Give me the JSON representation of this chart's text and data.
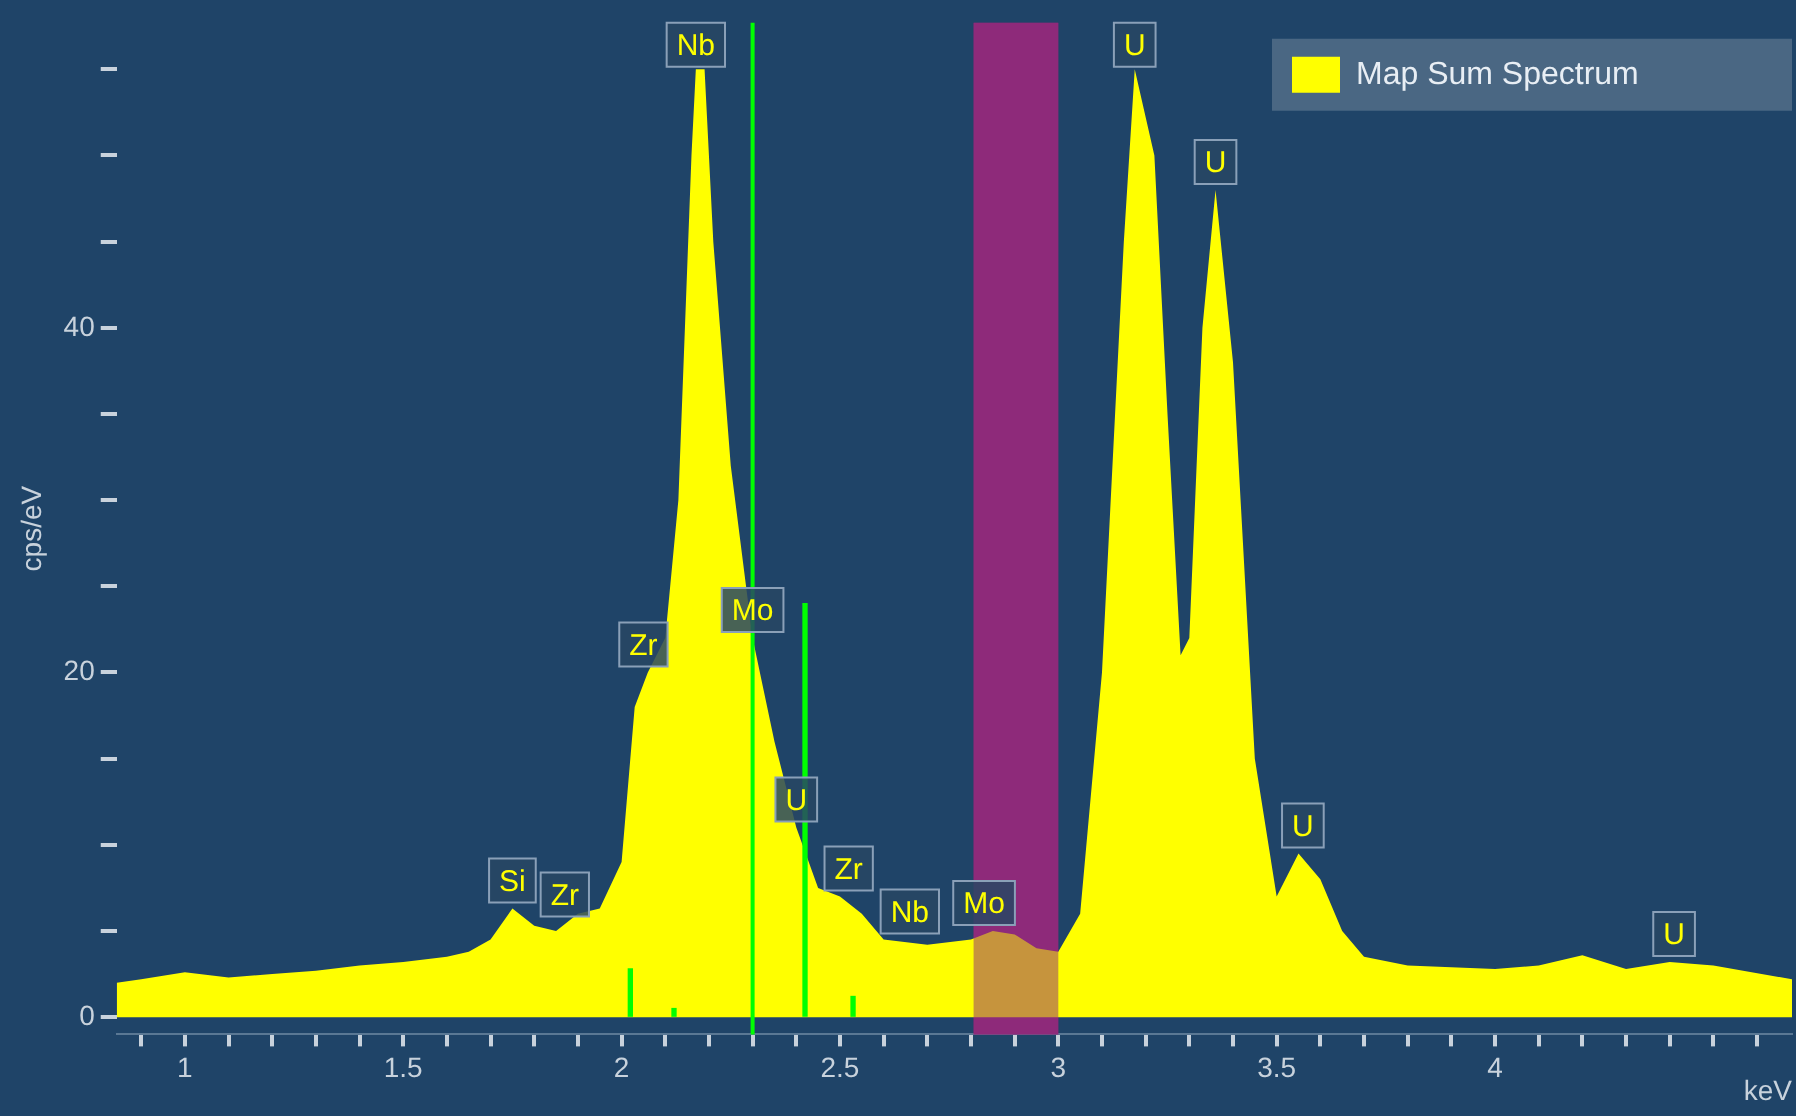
{
  "chart_data": {
    "type": "area",
    "xlabel": "keV",
    "ylabel": "cps/eV",
    "xlim": [
      0.844,
      4.68
    ],
    "ylim": [
      -1,
      57.7
    ],
    "xticks": [
      {
        "value": 0.9,
        "label": null
      },
      1,
      {
        "value": 1.1,
        "label": null
      },
      {
        "value": 1.2,
        "label": null
      },
      {
        "value": 1.3,
        "label": null
      },
      {
        "value": 1.4,
        "label": null
      },
      1.5,
      {
        "value": 1.6,
        "label": null
      },
      {
        "value": 1.7,
        "label": null
      },
      {
        "value": 1.8,
        "label": null
      },
      {
        "value": 1.9,
        "label": null
      },
      2,
      {
        "value": 2.1,
        "label": null
      },
      {
        "value": 2.2,
        "label": null
      },
      {
        "value": 2.3,
        "label": null
      },
      {
        "value": 2.4,
        "label": null
      },
      2.5,
      {
        "value": 2.6,
        "label": null
      },
      {
        "value": 2.7,
        "label": null
      },
      {
        "value": 2.8,
        "label": null
      },
      {
        "value": 2.9,
        "label": null
      },
      3,
      {
        "value": 3.1,
        "label": null
      },
      {
        "value": 3.2,
        "label": null
      },
      {
        "value": 3.3,
        "label": null
      },
      {
        "value": 3.4,
        "label": null
      },
      3.5,
      {
        "value": 3.6,
        "label": null
      },
      {
        "value": 3.7,
        "label": null
      },
      {
        "value": 3.8,
        "label": null
      },
      {
        "value": 3.9,
        "label": null
      },
      4,
      {
        "value": 4.1,
        "label": null
      },
      {
        "value": 4.2,
        "label": null
      },
      {
        "value": 4.3,
        "label": null
      },
      {
        "value": 4.4,
        "label": null
      },
      {
        "value": 4.5,
        "label": null
      },
      {
        "value": 4.6,
        "label": null
      }
    ],
    "yticks": [
      0,
      {
        "value": 5,
        "label": null
      },
      {
        "value": 10,
        "label": null
      },
      {
        "value": 15,
        "label": null
      },
      20,
      {
        "value": 25,
        "label": null
      },
      {
        "value": 30,
        "label": null
      },
      {
        "value": 35,
        "label": null
      },
      40,
      {
        "value": 45,
        "label": null
      },
      {
        "value": 50,
        "label": null
      },
      {
        "value": 55,
        "label": null
      }
    ],
    "grid": false,
    "legend": "top right",
    "series": [
      {
        "name": "Map Sum Spectrum",
        "color": "#ffff00",
        "x": [
          0.844,
          0.9,
          1.0,
          1.1,
          1.2,
          1.3,
          1.4,
          1.5,
          1.6,
          1.65,
          1.7,
          1.75,
          1.8,
          1.85,
          1.9,
          1.95,
          2.0,
          2.03,
          2.06,
          2.1,
          2.13,
          2.16,
          2.17,
          2.19,
          2.21,
          2.25,
          2.3,
          2.35,
          2.4,
          2.45,
          2.5,
          2.55,
          2.6,
          2.7,
          2.8,
          2.85,
          2.9,
          2.95,
          3.0,
          3.05,
          3.1,
          3.15,
          3.175,
          3.22,
          3.25,
          3.28,
          3.3,
          3.33,
          3.36,
          3.4,
          3.45,
          3.5,
          3.55,
          3.6,
          3.65,
          3.7,
          3.8,
          4.0,
          4.1,
          4.2,
          4.3,
          4.4,
          4.5,
          4.68
        ],
        "values": [
          2,
          2.2,
          2.6,
          2.3,
          2.5,
          2.7,
          3,
          3.2,
          3.5,
          3.8,
          4.5,
          6.3,
          5.3,
          5,
          6,
          6.3,
          9,
          18,
          20,
          22,
          30,
          50,
          55,
          55,
          45,
          32,
          22,
          16,
          11,
          7.5,
          7,
          6,
          4.5,
          4.2,
          4.5,
          5,
          4.8,
          4,
          3.8,
          6,
          20,
          45,
          55,
          50,
          35,
          21,
          22,
          40,
          48,
          38,
          15,
          7,
          9.5,
          8,
          5,
          3.5,
          3,
          2.8,
          3,
          3.6,
          2.8,
          3.2,
          3,
          2.2
        ]
      },
      {
        "color": "#00ff00",
        "type": "bar",
        "x": [
          2.02,
          2.12,
          2.42,
          2.53
        ],
        "values": [
          2.8,
          0.5,
          24,
          1.2
        ]
      }
    ],
    "ref_lines": [
      {
        "axis": "x",
        "value": 2.3,
        "color": "#00ff00"
      }
    ],
    "bands": [
      {
        "axis": "x",
        "from": 2.806,
        "to": 3.0,
        "color": "#8e2a7a"
      }
    ],
    "annotations": [
      {
        "text": "Si",
        "x": 1.75,
        "y": 6.3
      },
      {
        "text": "Zr",
        "x": 1.87,
        "y": 5.5
      },
      {
        "text": "Zr",
        "x": 2.05,
        "y": 20
      },
      {
        "text": "Nb",
        "x": 2.17,
        "y": 55
      },
      {
        "text": "Mo",
        "x": 2.3,
        "y": 22
      },
      {
        "text": "U",
        "x": 2.4,
        "y": 11
      },
      {
        "text": "Zr",
        "x": 2.52,
        "y": 7
      },
      {
        "text": "Nb",
        "x": 2.66,
        "y": 4.5
      },
      {
        "text": "Mo",
        "x": 2.83,
        "y": 5
      },
      {
        "text": "U",
        "x": 3.175,
        "y": 55
      },
      {
        "text": "U",
        "x": 3.36,
        "y": 48
      },
      {
        "text": "U",
        "x": 3.56,
        "y": 9.5
      },
      {
        "text": "U",
        "x": 4.41,
        "y": 3.2
      }
    ]
  }
}
